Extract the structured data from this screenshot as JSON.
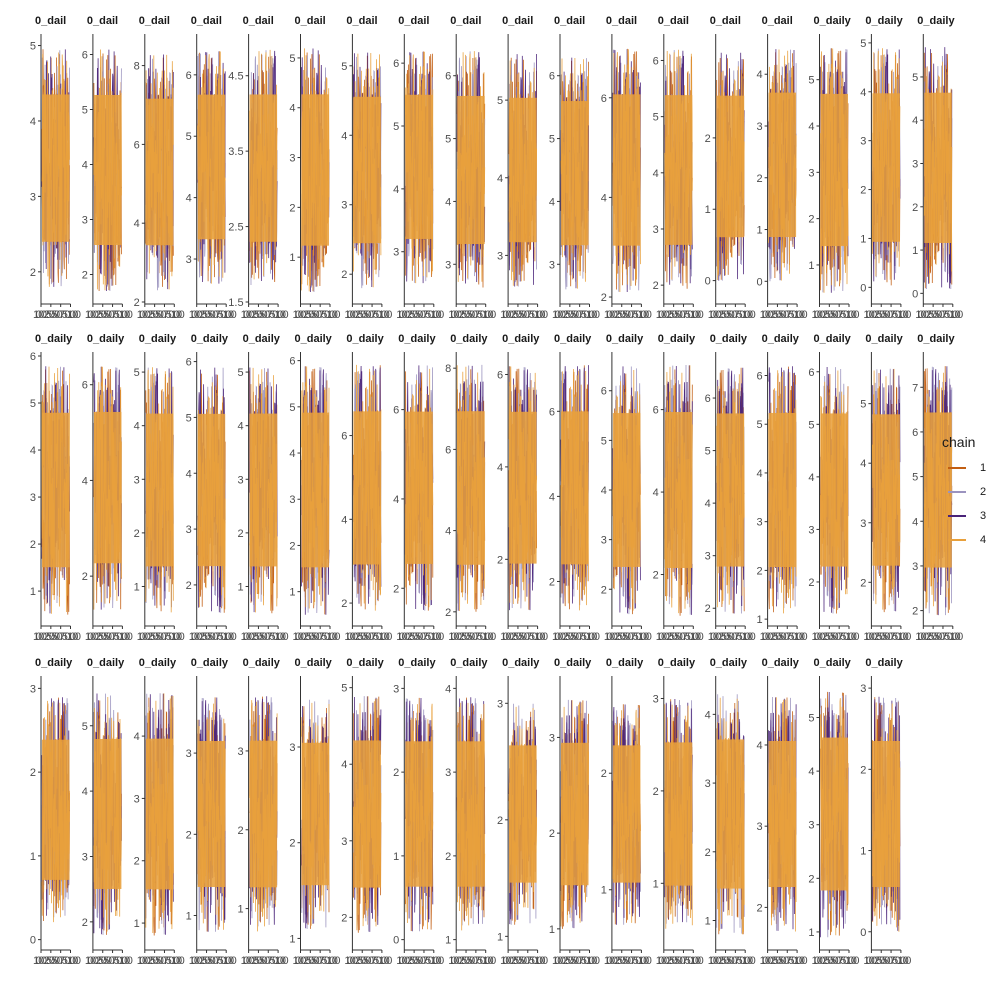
{
  "legend": {
    "title": "chain",
    "items": [
      {
        "label": "1",
        "color": "#c25e12"
      },
      {
        "label": "2",
        "color": "#9b93bf"
      },
      {
        "label": "3",
        "color": "#4a2379"
      },
      {
        "label": "4",
        "color": "#e8a03c"
      }
    ]
  },
  "chart_data": {
    "type": "line",
    "title": "",
    "xlabel": "",
    "ylabel": "",
    "iterations": [
      1,
      1000
    ],
    "x_tick_labels_text": [
      "1000",
      "250",
      "500",
      "750",
      "1000"
    ],
    "panel_label": "_dail",
    "panel_labels_text": [
      "0_dail",
      "0_dail",
      "0_dail",
      "0_dail",
      "0_dail",
      "0_dail",
      "0_dail",
      "0_dail",
      "0_dail",
      "0_dail",
      "0_dail",
      "0_dail",
      "0_dail",
      "0_dail",
      "0_dail",
      "0_daily",
      "0_daily",
      "0_daily",
      "0_daily",
      "0_daily",
      "0_daily",
      "0_daily",
      "0_daily",
      "0_daily",
      "0_daily",
      "0_daily",
      "0_daily",
      "0_daily",
      "0_daily",
      "0_daily",
      "0_daily",
      "0_daily",
      "0_daily",
      "0_daily",
      "0_daily",
      "0_daily",
      "0_daily",
      "0_daily",
      "0_daily",
      "0_daily",
      "0_daily",
      "0_daily",
      "0_daily",
      "0_daily",
      "0_daily",
      "0_daily",
      "0_daily",
      "0_daily",
      "0_daily",
      "0_daily",
      "0_daily",
      "0_daily",
      "0_daily"
    ],
    "series_names": [
      "1",
      "2",
      "3",
      "4"
    ],
    "series_colors": [
      "#c25e12",
      "#9b93bf",
      "#4a2379",
      "#e8a03c"
    ],
    "legend_position": "right",
    "grid": false,
    "rows": 3,
    "panels_per_row": 18,
    "panels": [
      {
        "ylim": [
          1.6,
          5.1
        ],
        "yticks": [
          2,
          3,
          4,
          5
        ],
        "lo": 1.8,
        "hi": 4.95
      },
      {
        "ylim": [
          1.5,
          6.3
        ],
        "yticks": [
          2,
          3,
          4,
          5,
          6
        ],
        "lo": 1.7,
        "hi": 6.1
      },
      {
        "ylim": [
          2,
          8.7
        ],
        "yticks": [
          2,
          4,
          6,
          8
        ],
        "lo": 2.3,
        "hi": 8.3
      },
      {
        "ylim": [
          2.3,
          6.6
        ],
        "yticks": [
          3,
          4,
          5,
          6
        ],
        "lo": 2.6,
        "hi": 6.4
      },
      {
        "ylim": [
          1.5,
          5
        ],
        "yticks": [
          1.5,
          2.5,
          3.5,
          4.5
        ],
        "lo": 1.7,
        "hi": 4.85
      },
      {
        "ylim": [
          0.1,
          5.4
        ],
        "yticks": [
          1,
          2,
          3,
          4,
          5
        ],
        "lo": 0.3,
        "hi": 5.2
      },
      {
        "ylim": [
          1.6,
          5.4
        ],
        "yticks": [
          2,
          3,
          4,
          5
        ],
        "lo": 1.8,
        "hi": 5.2
      },
      {
        "ylim": [
          2.2,
          6.4
        ],
        "yticks": [
          3,
          4,
          5,
          6
        ],
        "lo": 2.5,
        "hi": 6.2
      },
      {
        "ylim": [
          2.4,
          6.6
        ],
        "yticks": [
          3,
          4,
          5,
          6
        ],
        "lo": 2.6,
        "hi": 6.4
      },
      {
        "ylim": [
          2.4,
          5.8
        ],
        "yticks": [
          3,
          4,
          5
        ],
        "lo": 2.6,
        "hi": 5.6
      },
      {
        "ylim": [
          2.4,
          6.6
        ],
        "yticks": [
          3,
          4,
          5,
          6
        ],
        "lo": 2.6,
        "hi": 6.3
      },
      {
        "ylim": [
          1.9,
          7.2
        ],
        "yticks": [
          2,
          4,
          6
        ],
        "lo": 2.1,
        "hi": 7
      },
      {
        "ylim": [
          1.7,
          6.4
        ],
        "yticks": [
          2,
          3,
          4,
          5,
          6
        ],
        "lo": 1.9,
        "hi": 6.2
      },
      {
        "ylim": [
          -0.3,
          3.4
        ],
        "yticks": [
          0,
          1,
          2
        ],
        "lo": 0,
        "hi": 3.2
      },
      {
        "ylim": [
          -0.4,
          4.7
        ],
        "yticks": [
          0,
          1,
          2,
          3,
          4
        ],
        "lo": 0,
        "hi": 4.5
      },
      {
        "ylim": [
          0.2,
          5.9
        ],
        "yticks": [
          1,
          2,
          3,
          4,
          5
        ],
        "lo": 0.4,
        "hi": 5.7
      },
      {
        "ylim": [
          -0.3,
          5.1
        ],
        "yticks": [
          0,
          1,
          2,
          3,
          4,
          5
        ],
        "lo": 0,
        "hi": 4.9
      },
      {
        "ylim": [
          -0.2,
          5.9
        ],
        "yticks": [
          0,
          1,
          2,
          3,
          4,
          5
        ],
        "lo": 0.1,
        "hi": 5.7
      },
      {
        "ylim": [
          0.3,
          6
        ],
        "yticks": [
          1,
          2,
          3,
          4,
          5,
          6
        ],
        "lo": 0.5,
        "hi": 5.8
      },
      {
        "ylim": [
          1,
          6.6
        ],
        "yticks": [
          2,
          4,
          6
        ],
        "lo": 1.3,
        "hi": 6.4
      },
      {
        "ylim": [
          0.3,
          5.3
        ],
        "yticks": [
          1,
          2,
          3,
          4,
          5
        ],
        "lo": 0.5,
        "hi": 5.1
      },
      {
        "ylim": [
          1.3,
          6.1
        ],
        "yticks": [
          2,
          3,
          4,
          5,
          6
        ],
        "lo": 1.5,
        "hi": 5.9
      },
      {
        "ylim": [
          0.3,
          5.3
        ],
        "yticks": [
          1,
          2,
          3,
          4,
          5
        ],
        "lo": 0.5,
        "hi": 5.1
      },
      {
        "ylim": [
          0.3,
          6.1
        ],
        "yticks": [
          1,
          2,
          3,
          4,
          5,
          6
        ],
        "lo": 0.5,
        "hi": 5.9
      },
      {
        "ylim": [
          1.5,
          7.9
        ],
        "yticks": [
          2,
          4,
          6
        ],
        "lo": 1.8,
        "hi": 7.7
      },
      {
        "ylim": [
          1.2,
          7.2
        ],
        "yticks": [
          2,
          4,
          6
        ],
        "lo": 1.5,
        "hi": 7
      },
      {
        "ylim": [
          1.7,
          8.3
        ],
        "yticks": [
          2,
          4,
          6,
          8
        ],
        "lo": 2,
        "hi": 8.1
      },
      {
        "ylim": [
          0.6,
          6.4
        ],
        "yticks": [
          2,
          4,
          6
        ],
        "lo": 0.9,
        "hi": 6.2
      },
      {
        "ylim": [
          1,
          7.3
        ],
        "yticks": [
          2,
          4,
          6
        ],
        "lo": 1.3,
        "hi": 7.1
      },
      {
        "ylim": [
          1.3,
          6.7
        ],
        "yticks": [
          2,
          3,
          4,
          5,
          6
        ],
        "lo": 1.5,
        "hi": 6.5
      },
      {
        "ylim": [
          0.8,
          7.3
        ],
        "yticks": [
          2,
          4,
          6
        ],
        "lo": 1,
        "hi": 7.1
      },
      {
        "ylim": [
          1.7,
          6.8
        ],
        "yticks": [
          2,
          3,
          4,
          5,
          6
        ],
        "lo": 1.9,
        "hi": 6.6
      },
      {
        "ylim": [
          0.9,
          6.4
        ],
        "yticks": [
          1,
          2,
          3,
          4,
          5,
          6
        ],
        "lo": 1.1,
        "hi": 6.2
      },
      {
        "ylim": [
          1.2,
          6.3
        ],
        "yticks": [
          2,
          3,
          4,
          5,
          6
        ],
        "lo": 1.4,
        "hi": 6.1
      },
      {
        "ylim": [
          1.3,
          5.8
        ],
        "yticks": [
          2,
          3,
          4,
          5
        ],
        "lo": 1.5,
        "hi": 5.6
      },
      {
        "ylim": [
          1.7,
          7.7
        ],
        "yticks": [
          2,
          3,
          4,
          5,
          6,
          7
        ],
        "lo": 1.9,
        "hi": 7.5
      },
      {
        "ylim": [
          -0.1,
          3.1
        ],
        "yticks": [
          0,
          1,
          2,
          3
        ],
        "lo": 0.2,
        "hi": 2.9
      },
      {
        "ylim": [
          1.6,
          5.7
        ],
        "yticks": [
          2,
          3,
          4,
          5
        ],
        "lo": 1.8,
        "hi": 5.5
      },
      {
        "ylim": [
          0.6,
          4.9
        ],
        "yticks": [
          1,
          2,
          3,
          4
        ],
        "lo": 0.8,
        "hi": 4.7
      },
      {
        "ylim": [
          0.6,
          3.9
        ],
        "yticks": [
          1,
          2,
          3
        ],
        "lo": 0.8,
        "hi": 3.7
      },
      {
        "ylim": [
          0.5,
          3.9
        ],
        "yticks": [
          1,
          2,
          3
        ],
        "lo": 0.7,
        "hi": 3.7
      },
      {
        "ylim": [
          0.9,
          3.7
        ],
        "yticks": [
          1,
          2,
          3
        ],
        "lo": 1.1,
        "hi": 3.5
      },
      {
        "ylim": [
          1.6,
          5.1
        ],
        "yticks": [
          2,
          3,
          4,
          5
        ],
        "lo": 1.8,
        "hi": 4.9
      },
      {
        "ylim": [
          -0.1,
          3.1
        ],
        "yticks": [
          0,
          1,
          2,
          3
        ],
        "lo": 0.1,
        "hi": 2.9
      },
      {
        "ylim": [
          0.9,
          4.1
        ],
        "yticks": [
          1,
          2,
          3,
          4
        ],
        "lo": 1.1,
        "hi": 3.9
      },
      {
        "ylim": [
          0.9,
          3.2
        ],
        "yticks": [
          1,
          2,
          3
        ],
        "lo": 1.1,
        "hi": 3
      },
      {
        "ylim": [
          0.8,
          3.6
        ],
        "yticks": [
          1,
          2,
          3
        ],
        "lo": 1,
        "hi": 3.4
      },
      {
        "ylim": [
          0.5,
          2.8
        ],
        "yticks": [
          1,
          2
        ],
        "lo": 0.7,
        "hi": 2.6
      },
      {
        "ylim": [
          0.3,
          3.2
        ],
        "yticks": [
          1,
          2,
          3
        ],
        "lo": 0.5,
        "hi": 3
      },
      {
        "ylim": [
          0.6,
          4.5
        ],
        "yticks": [
          1,
          2,
          3,
          4
        ],
        "lo": 0.8,
        "hi": 4.3
      },
      {
        "ylim": [
          1.5,
          4.8
        ],
        "yticks": [
          2,
          3,
          4
        ],
        "lo": 1.7,
        "hi": 4.6
      },
      {
        "ylim": [
          0.7,
          5.7
        ],
        "yticks": [
          1,
          2,
          3,
          4,
          5
        ],
        "lo": 0.9,
        "hi": 5.5
      },
      {
        "ylim": [
          -0.2,
          3.1
        ],
        "yticks": [
          0,
          1,
          2,
          3
        ],
        "lo": 0,
        "hi": 2.9
      }
    ]
  }
}
